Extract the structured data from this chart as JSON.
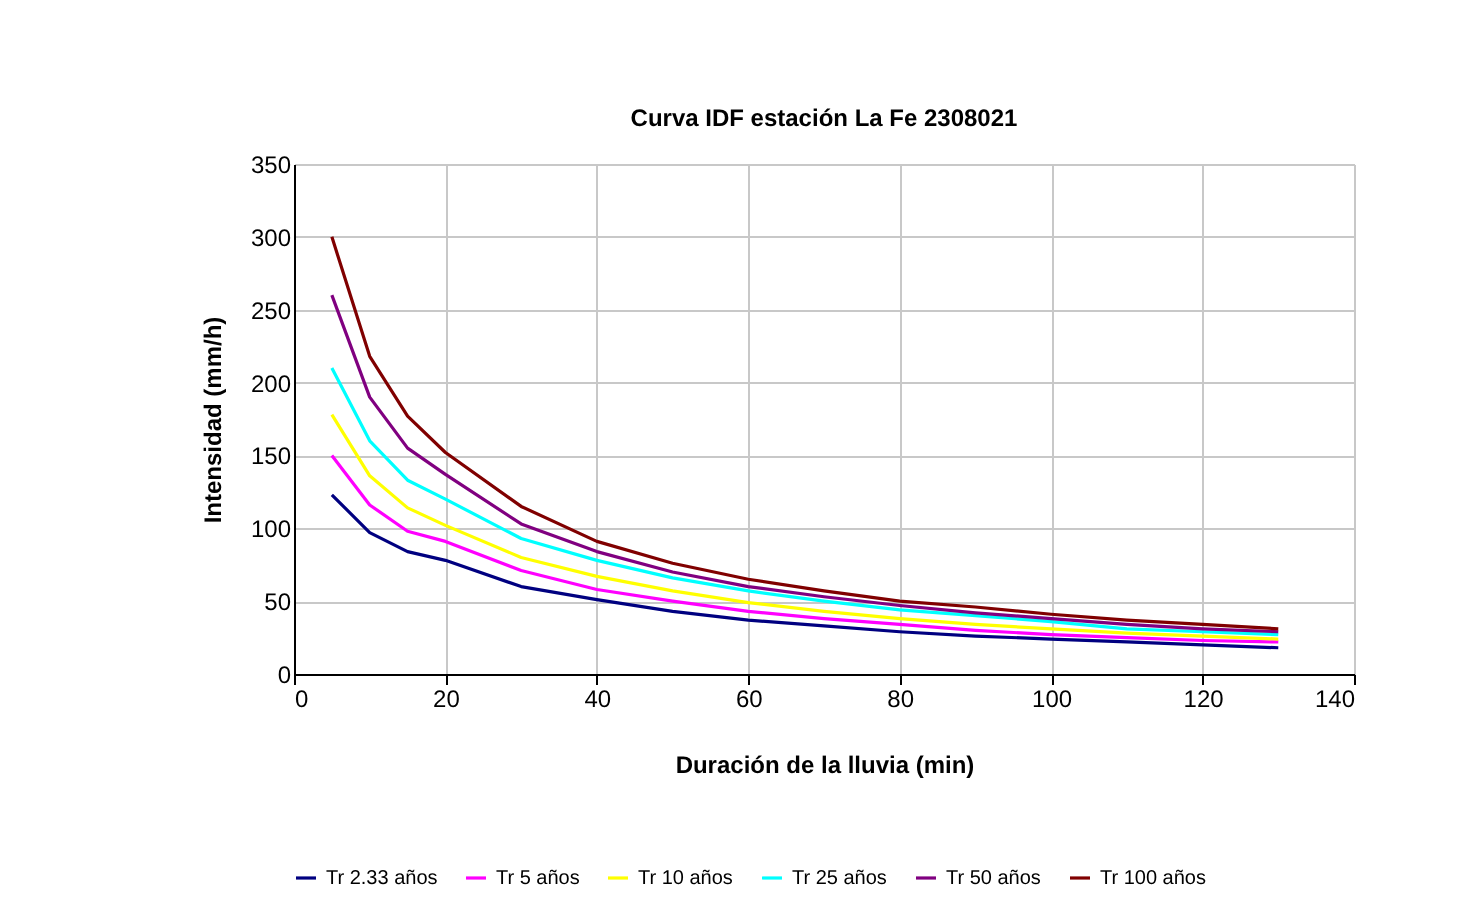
{
  "chart_data": {
    "type": "line",
    "title": "Curva IDF estación La Fe 2308021",
    "xlabel": "Duración de la lluvia (min)",
    "ylabel": "Intensidad (mm/h)",
    "x": [
      5,
      10,
      15,
      20,
      30,
      40,
      50,
      60,
      70,
      80,
      90,
      100,
      110,
      120,
      130
    ],
    "series": [
      {
        "name": "Tr 2.33 años",
        "color": "#000080",
        "values": [
          123,
          97,
          84,
          78,
          60,
          51,
          43,
          37,
          33,
          29,
          26,
          24,
          22,
          20,
          18
        ]
      },
      {
        "name": "Tr 5 años",
        "color": "#ff00ff",
        "values": [
          150,
          116,
          98,
          91,
          71,
          58,
          50,
          43,
          38,
          34,
          30,
          27,
          25,
          23,
          22
        ]
      },
      {
        "name": "Tr 10 años",
        "color": "#ffff00",
        "values": [
          178,
          136,
          114,
          102,
          80,
          67,
          57,
          49,
          43,
          38,
          34,
          31,
          28,
          26,
          24
        ]
      },
      {
        "name": "Tr 25 años",
        "color": "#00ffff",
        "values": [
          210,
          160,
          133,
          120,
          93,
          78,
          66,
          57,
          50,
          44,
          40,
          36,
          31,
          29,
          27
        ]
      },
      {
        "name": "Tr 50 años",
        "color": "#800080",
        "values": [
          260,
          190,
          155,
          137,
          103,
          84,
          70,
          60,
          53,
          47,
          42,
          38,
          34,
          31,
          29
        ]
      },
      {
        "name": "Tr 100 años",
        "color": "#800000",
        "values": [
          300,
          218,
          177,
          152,
          115,
          91,
          76,
          65,
          57,
          50,
          46,
          41,
          37,
          34,
          31
        ]
      }
    ],
    "xlim": [
      0,
      140
    ],
    "xticks": [
      0,
      20,
      40,
      60,
      80,
      100,
      120,
      140
    ],
    "ylim": [
      0,
      350
    ],
    "yticks": [
      0,
      50,
      100,
      150,
      200,
      250,
      300,
      350
    ],
    "grid": true,
    "legend": "bottom",
    "marker": "none",
    "line_style": "solid"
  }
}
